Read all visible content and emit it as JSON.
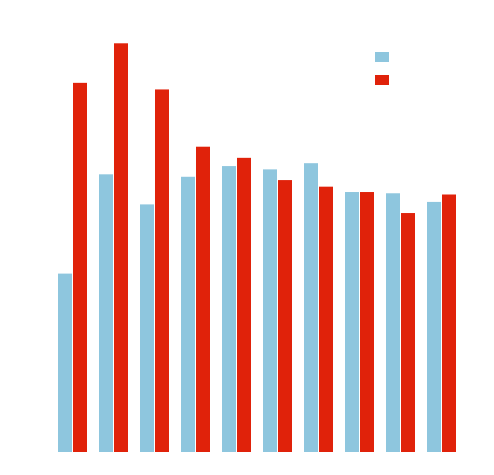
{
  "chart_data": {
    "type": "bar",
    "title": "",
    "xlabel": "",
    "ylabel": "",
    "ylim": [
      0,
      100
    ],
    "categories": [
      "",
      "",
      "",
      "",
      "",
      "",
      "",
      "",
      "",
      ""
    ],
    "legend_position": "top-right",
    "grid": false,
    "series": [
      {
        "name": "",
        "color": "#8ec6de",
        "values": [
          43.3,
          67.4,
          60.1,
          66.8,
          69.4,
          68.6,
          70.1,
          63.1,
          62.8,
          60.7
        ]
      },
      {
        "name": "",
        "color": "#e0220a",
        "values": [
          89.6,
          99.2,
          88.0,
          74.1,
          71.4,
          66.0,
          64.4,
          63.1,
          58.0,
          62.5
        ]
      }
    ]
  }
}
